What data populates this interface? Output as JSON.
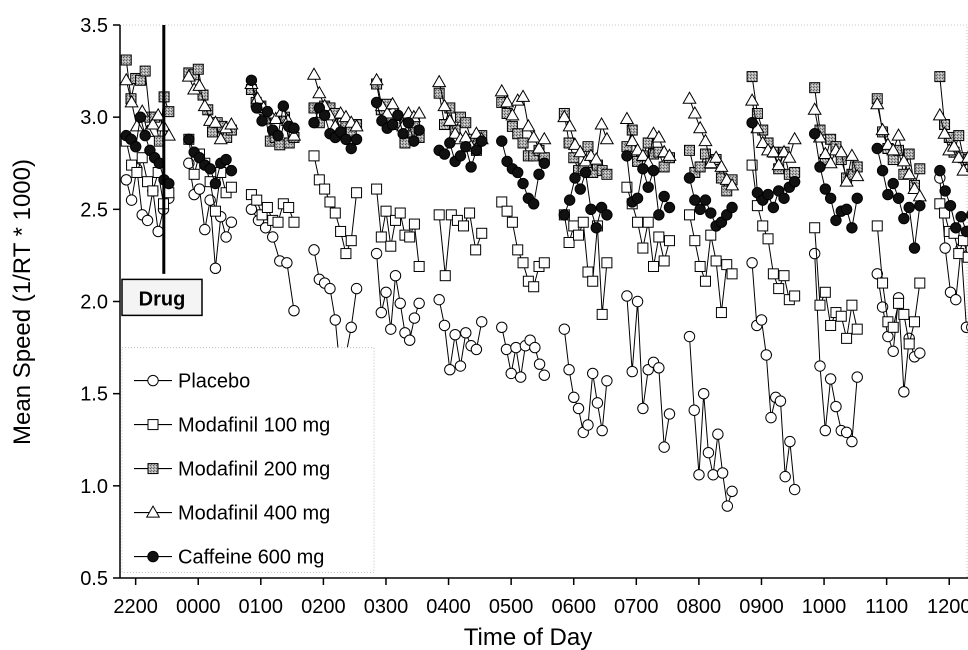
{
  "chart_data": {
    "type": "line",
    "xlabel": "Time of Day",
    "ylabel": "Mean Speed (1/RT * 1000)",
    "x_categories": [
      "2200",
      "0000",
      "0100",
      "0200",
      "0300",
      "0400",
      "0500",
      "0600",
      "0700",
      "0800",
      "0900",
      "1000",
      "1100",
      "1200"
    ],
    "ylim": [
      0.5,
      3.5
    ],
    "yticks": [
      "0.5",
      "1.0",
      "1.5",
      "2.0",
      "2.5",
      "3.0",
      "3.5"
    ],
    "annotation": "Drug",
    "annotation_x": 0.45,
    "x_range": [
      -0.25,
      13.3
    ],
    "legend": {
      "placement": "bottom-left"
    },
    "series": [
      {
        "name": "Placebo",
        "marker": "open-circle",
        "color": "#000000",
        "blocks": [
          [
            2.66,
            2.55,
            2.72,
            2.47,
            2.44,
            2.6,
            2.38,
            2.5,
            2.56
          ],
          [
            2.75,
            2.58,
            2.61,
            2.39,
            2.55,
            2.18,
            2.46,
            2.35,
            2.43
          ],
          [
            2.5,
            2.44,
            2.4,
            2.35,
            2.22,
            2.21,
            1.95
          ],
          [
            2.28,
            2.12,
            2.1,
            2.07,
            1.9,
            1.6,
            1.71,
            1.86,
            2.07
          ],
          [
            2.26,
            1.94,
            2.05,
            1.85,
            2.14,
            1.99,
            1.83,
            1.79,
            1.91,
            1.99
          ],
          [
            2.01,
            1.87,
            1.63,
            1.82,
            1.65,
            1.83,
            1.76,
            1.74,
            1.89
          ],
          [
            1.86,
            1.74,
            1.61,
            1.75,
            1.59,
            1.76,
            1.79,
            1.75,
            1.66,
            1.6
          ],
          [
            1.85,
            1.63,
            1.48,
            1.42,
            1.29,
            1.33,
            1.61,
            1.45,
            1.3,
            1.57
          ],
          [
            2.03,
            1.62,
            2.0,
            1.42,
            1.63,
            1.67,
            1.64,
            1.21,
            1.39
          ],
          [
            1.81,
            1.41,
            1.06,
            1.5,
            1.18,
            1.06,
            1.28,
            1.07,
            0.89,
            0.97
          ],
          [
            2.21,
            1.87,
            1.9,
            1.71,
            1.37,
            1.48,
            1.46,
            1.05,
            1.24,
            0.98
          ],
          [
            2.26,
            1.65,
            1.3,
            1.58,
            1.43,
            1.3,
            1.29,
            1.24,
            1.59
          ],
          [
            2.15,
            1.97,
            1.81,
            1.73,
            2.02,
            1.51,
            1.8,
            1.7,
            1.72
          ],
          [
            2.67,
            2.29,
            2.05,
            2.01,
            2.29,
            1.86,
            1.86,
            2.0,
            1.97
          ]
        ]
      },
      {
        "name": "Modafinil 100 mg",
        "marker": "open-square",
        "color": "#000000",
        "blocks": [
          [
            2.87,
            2.74,
            2.7,
            2.78,
            2.65,
            2.6,
            2.7,
            2.53,
            2.59
          ],
          [
            2.88,
            2.69,
            2.8,
            2.75,
            2.65,
            2.49,
            2.7,
            2.59,
            2.62
          ],
          [
            2.58,
            2.55,
            2.47,
            2.51,
            2.44,
            2.43,
            2.53,
            2.51,
            2.43
          ],
          [
            2.79,
            2.66,
            2.61,
            2.54,
            2.48,
            2.38,
            2.26,
            2.33,
            2.59
          ],
          [
            2.61,
            2.35,
            2.49,
            2.3,
            2.44,
            2.48,
            2.36,
            2.35,
            2.42,
            2.19
          ],
          [
            2.47,
            2.14,
            2.47,
            2.44,
            2.41,
            2.48,
            2.28,
            2.37
          ],
          [
            2.54,
            2.49,
            2.43,
            2.28,
            2.21,
            2.11,
            2.08,
            2.19,
            2.21
          ],
          [
            2.47,
            2.32,
            2.41,
            2.36,
            2.43,
            2.16,
            2.11,
            2.41,
            1.93,
            2.21
          ],
          [
            2.62,
            2.53,
            2.43,
            2.29,
            2.43,
            2.19,
            2.35,
            2.22,
            2.33
          ],
          [
            2.47,
            2.33,
            2.19,
            2.11,
            2.36,
            2.22,
            1.94,
            2.2,
            2.15
          ],
          [
            2.74,
            2.52,
            2.41,
            2.34,
            2.15,
            2.07,
            2.14,
            2.01,
            2.03
          ],
          [
            2.4,
            1.98,
            2.05,
            1.87,
            1.94,
            1.92,
            1.8,
            1.98,
            1.85
          ],
          [
            2.41,
            2.1,
            1.89,
            1.86,
            1.99,
            1.93,
            1.77,
            1.89,
            2.1
          ],
          [
            2.53,
            2.48,
            2.38,
            2.37,
            2.26,
            2.33,
            2.24,
            2.33,
            2.42,
            2.38
          ]
        ]
      },
      {
        "name": "Modafinil 200 mg",
        "marker": "gray-square",
        "color": "#000000",
        "blocks": [
          [
            3.31,
            3.1,
            3.21,
            3.2,
            3.25,
            3.0,
            3.0,
            2.87,
            3.11,
            3.03
          ],
          [
            3.24,
            3.23,
            3.26,
            3.12,
            3.04,
            2.92,
            2.97,
            2.95,
            2.89,
            2.93
          ],
          [
            3.15,
            3.08,
            3.06,
            2.99,
            2.87,
            2.89,
            2.85,
            3.0,
            2.86,
            2.89
          ],
          [
            3.05,
            2.97,
            3.06,
            3.05,
            3.02,
            2.93,
            2.97,
            2.92,
            2.96
          ],
          [
            3.18,
            3.04,
            3.07,
            2.98,
            2.96,
            2.97,
            2.86,
            2.92,
            2.97,
            2.89
          ],
          [
            3.13,
            2.96,
            3.05,
            2.93,
            3.0,
            2.97,
            2.88,
            2.82,
            2.9
          ],
          [
            3.08,
            3.02,
            2.95,
            2.91,
            2.86,
            2.79,
            2.79,
            2.82,
            2.78
          ],
          [
            3.02,
            2.86,
            2.78,
            2.71,
            2.72,
            2.84,
            2.7,
            2.74,
            2.71,
            2.69
          ],
          [
            2.84,
            2.93,
            2.76,
            2.79,
            2.86,
            2.8,
            2.81,
            2.73,
            2.78
          ],
          [
            2.82,
            2.7,
            2.73,
            2.8,
            2.75,
            2.77,
            2.67,
            2.6,
            2.66
          ],
          [
            3.22,
            3.02,
            2.93,
            2.86,
            2.81,
            2.72,
            2.81,
            2.69,
            2.7
          ],
          [
            3.16,
            2.93,
            2.77,
            2.88,
            2.84,
            2.77,
            2.67,
            2.69,
            2.73
          ],
          [
            3.1,
            2.92,
            2.83,
            2.77,
            2.82,
            2.69,
            2.8,
            2.63,
            2.72
          ],
          [
            3.22,
            2.96,
            2.89,
            2.81,
            2.9,
            2.78,
            2.77,
            2.72,
            2.74,
            2.76
          ]
        ]
      },
      {
        "name": "Modafinil 400 mg",
        "marker": "open-triangle",
        "color": "#000000",
        "blocks": [
          [
            3.2,
            3.08,
            2.95,
            3.03,
            2.92,
            2.96,
            3.01,
            2.95,
            2.9
          ],
          [
            3.22,
            3.15,
            3.17,
            3.06,
            2.98,
            2.97,
            2.88,
            2.94,
            2.96
          ],
          [
            3.18,
            3.1,
            3.05,
            3.02,
            2.99,
            3.03,
            2.98,
            2.9
          ],
          [
            3.23,
            3.13,
            3.06,
            3.01,
            2.95,
            3.02,
            3.0,
            2.97,
            2.95
          ],
          [
            3.2,
            3.06,
            3.02,
            3.07,
            3.01,
            2.95,
            3.02,
            3.0,
            3.02
          ],
          [
            3.19,
            3.06,
            2.98,
            2.91,
            2.88,
            2.89,
            2.84,
            2.91,
            2.88
          ],
          [
            3.14,
            3.08,
            3.01,
            3.09,
            3.11,
            2.95,
            2.89,
            2.83,
            2.88
          ],
          [
            3.0,
            2.95,
            2.85,
            2.81,
            2.76,
            2.79,
            2.77,
            2.96,
            2.88
          ],
          [
            2.99,
            2.87,
            2.82,
            2.79,
            2.75,
            2.91,
            2.89,
            2.81,
            2.79
          ],
          [
            3.1,
            3.02,
            2.94,
            2.87,
            2.75,
            2.78,
            2.73,
            2.66,
            2.63
          ],
          [
            3.09,
            2.94,
            2.86,
            2.82,
            2.81,
            2.74,
            2.81,
            2.78,
            2.88
          ],
          [
            3.04,
            2.89,
            2.8,
            2.75,
            2.82,
            2.81,
            2.65,
            2.79,
            2.68
          ],
          [
            3.07,
            2.93,
            2.85,
            2.82,
            2.9,
            2.76,
            2.69,
            2.61,
            2.57
          ],
          [
            3.01,
            2.91,
            2.82,
            2.84,
            2.78,
            2.71,
            2.78,
            2.73,
            2.79,
            2.7
          ]
        ]
      },
      {
        "name": "Caffeine 600 mg",
        "marker": "filled-circle",
        "color": "#000000",
        "blocks": [
          [
            2.9,
            2.88,
            2.84,
            3.0,
            2.9,
            2.82,
            2.78,
            2.75,
            2.66,
            2.64
          ],
          [
            2.88,
            2.81,
            2.78,
            2.74,
            2.72,
            2.64,
            2.75,
            2.77,
            2.71
          ],
          [
            3.2,
            3.05,
            2.98,
            3.03,
            2.93,
            2.9,
            3.06,
            2.95,
            2.94
          ],
          [
            2.97,
            3.05,
            3.01,
            2.91,
            2.89,
            2.92,
            2.88,
            2.83,
            2.88
          ],
          [
            3.08,
            2.98,
            2.94,
            2.96,
            3.01,
            2.91,
            2.97,
            2.87,
            2.93
          ],
          [
            2.82,
            2.8,
            2.86,
            2.76,
            2.79,
            2.84,
            2.73,
            2.82,
            2.87
          ],
          [
            2.87,
            2.76,
            2.72,
            2.7,
            2.64,
            2.56,
            2.53,
            2.69,
            2.75
          ],
          [
            2.47,
            2.55,
            2.67,
            2.61,
            2.7,
            2.5,
            2.4,
            2.51,
            2.47
          ],
          [
            2.79,
            2.54,
            2.56,
            2.72,
            2.62,
            2.71,
            2.47,
            2.57,
            2.51
          ],
          [
            2.67,
            2.55,
            2.5,
            2.55,
            2.48,
            2.41,
            2.43,
            2.47,
            2.51
          ],
          [
            2.97,
            2.59,
            2.55,
            2.58,
            2.51,
            2.6,
            2.56,
            2.62,
            2.65
          ],
          [
            2.91,
            2.73,
            2.61,
            2.56,
            2.44,
            2.49,
            2.5,
            2.4,
            2.56
          ],
          [
            2.83,
            2.71,
            2.58,
            2.64,
            2.56,
            2.45,
            2.51,
            2.29,
            2.52
          ],
          [
            2.71,
            2.6,
            2.52,
            2.4,
            2.46,
            2.38,
            2.47,
            2.59,
            2.61
          ]
        ]
      }
    ]
  }
}
